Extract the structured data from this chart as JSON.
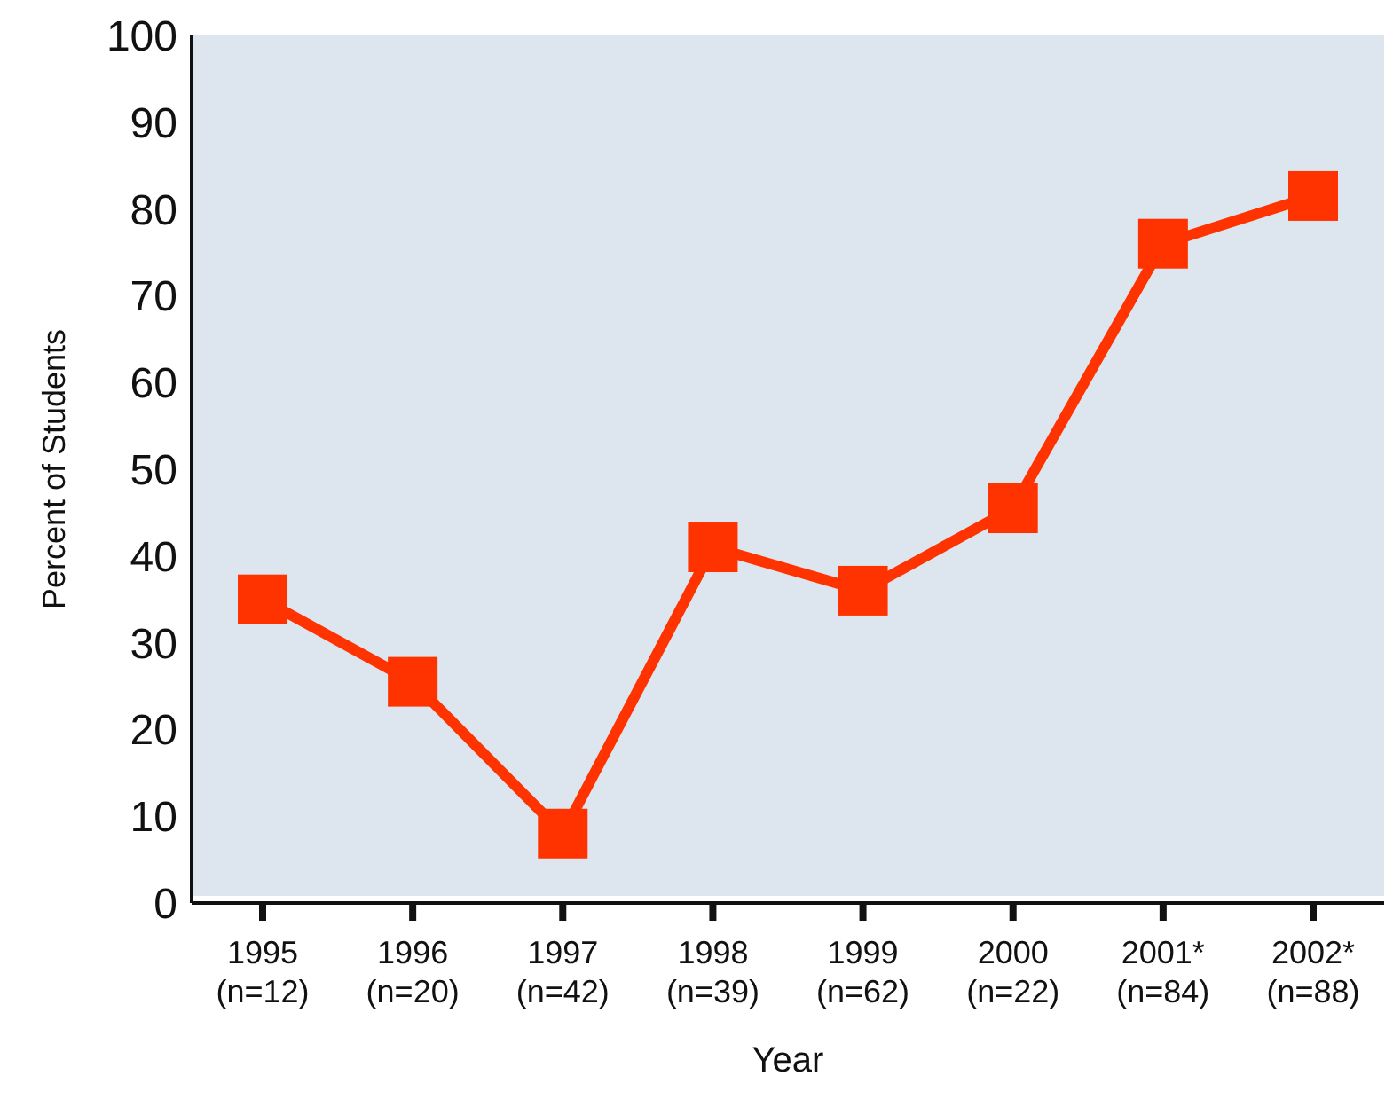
{
  "chart_data": {
    "type": "line",
    "xlabel": "Year",
    "ylabel": "Percent of Students",
    "categories": [
      "1995\n(n=12)",
      "1996\n(n=20)",
      "1997\n(n=42)",
      "1998\n(n=39)",
      "1999\n(n=62)",
      "2000\n(n=22)",
      "2001*\n(n=84)",
      "2002*\n(n=88)"
    ],
    "series": [
      {
        "color": "#ff3300",
        "values": [
          35,
          25.5,
          8,
          41,
          36,
          45.5,
          76,
          81.5
        ]
      }
    ],
    "ylim": [
      0,
      100
    ],
    "yticks": [
      0,
      10,
      20,
      30,
      40,
      50,
      60,
      70,
      80,
      90,
      100
    ],
    "grid": false,
    "legend": false,
    "marker": "square",
    "line_style": "solid"
  }
}
